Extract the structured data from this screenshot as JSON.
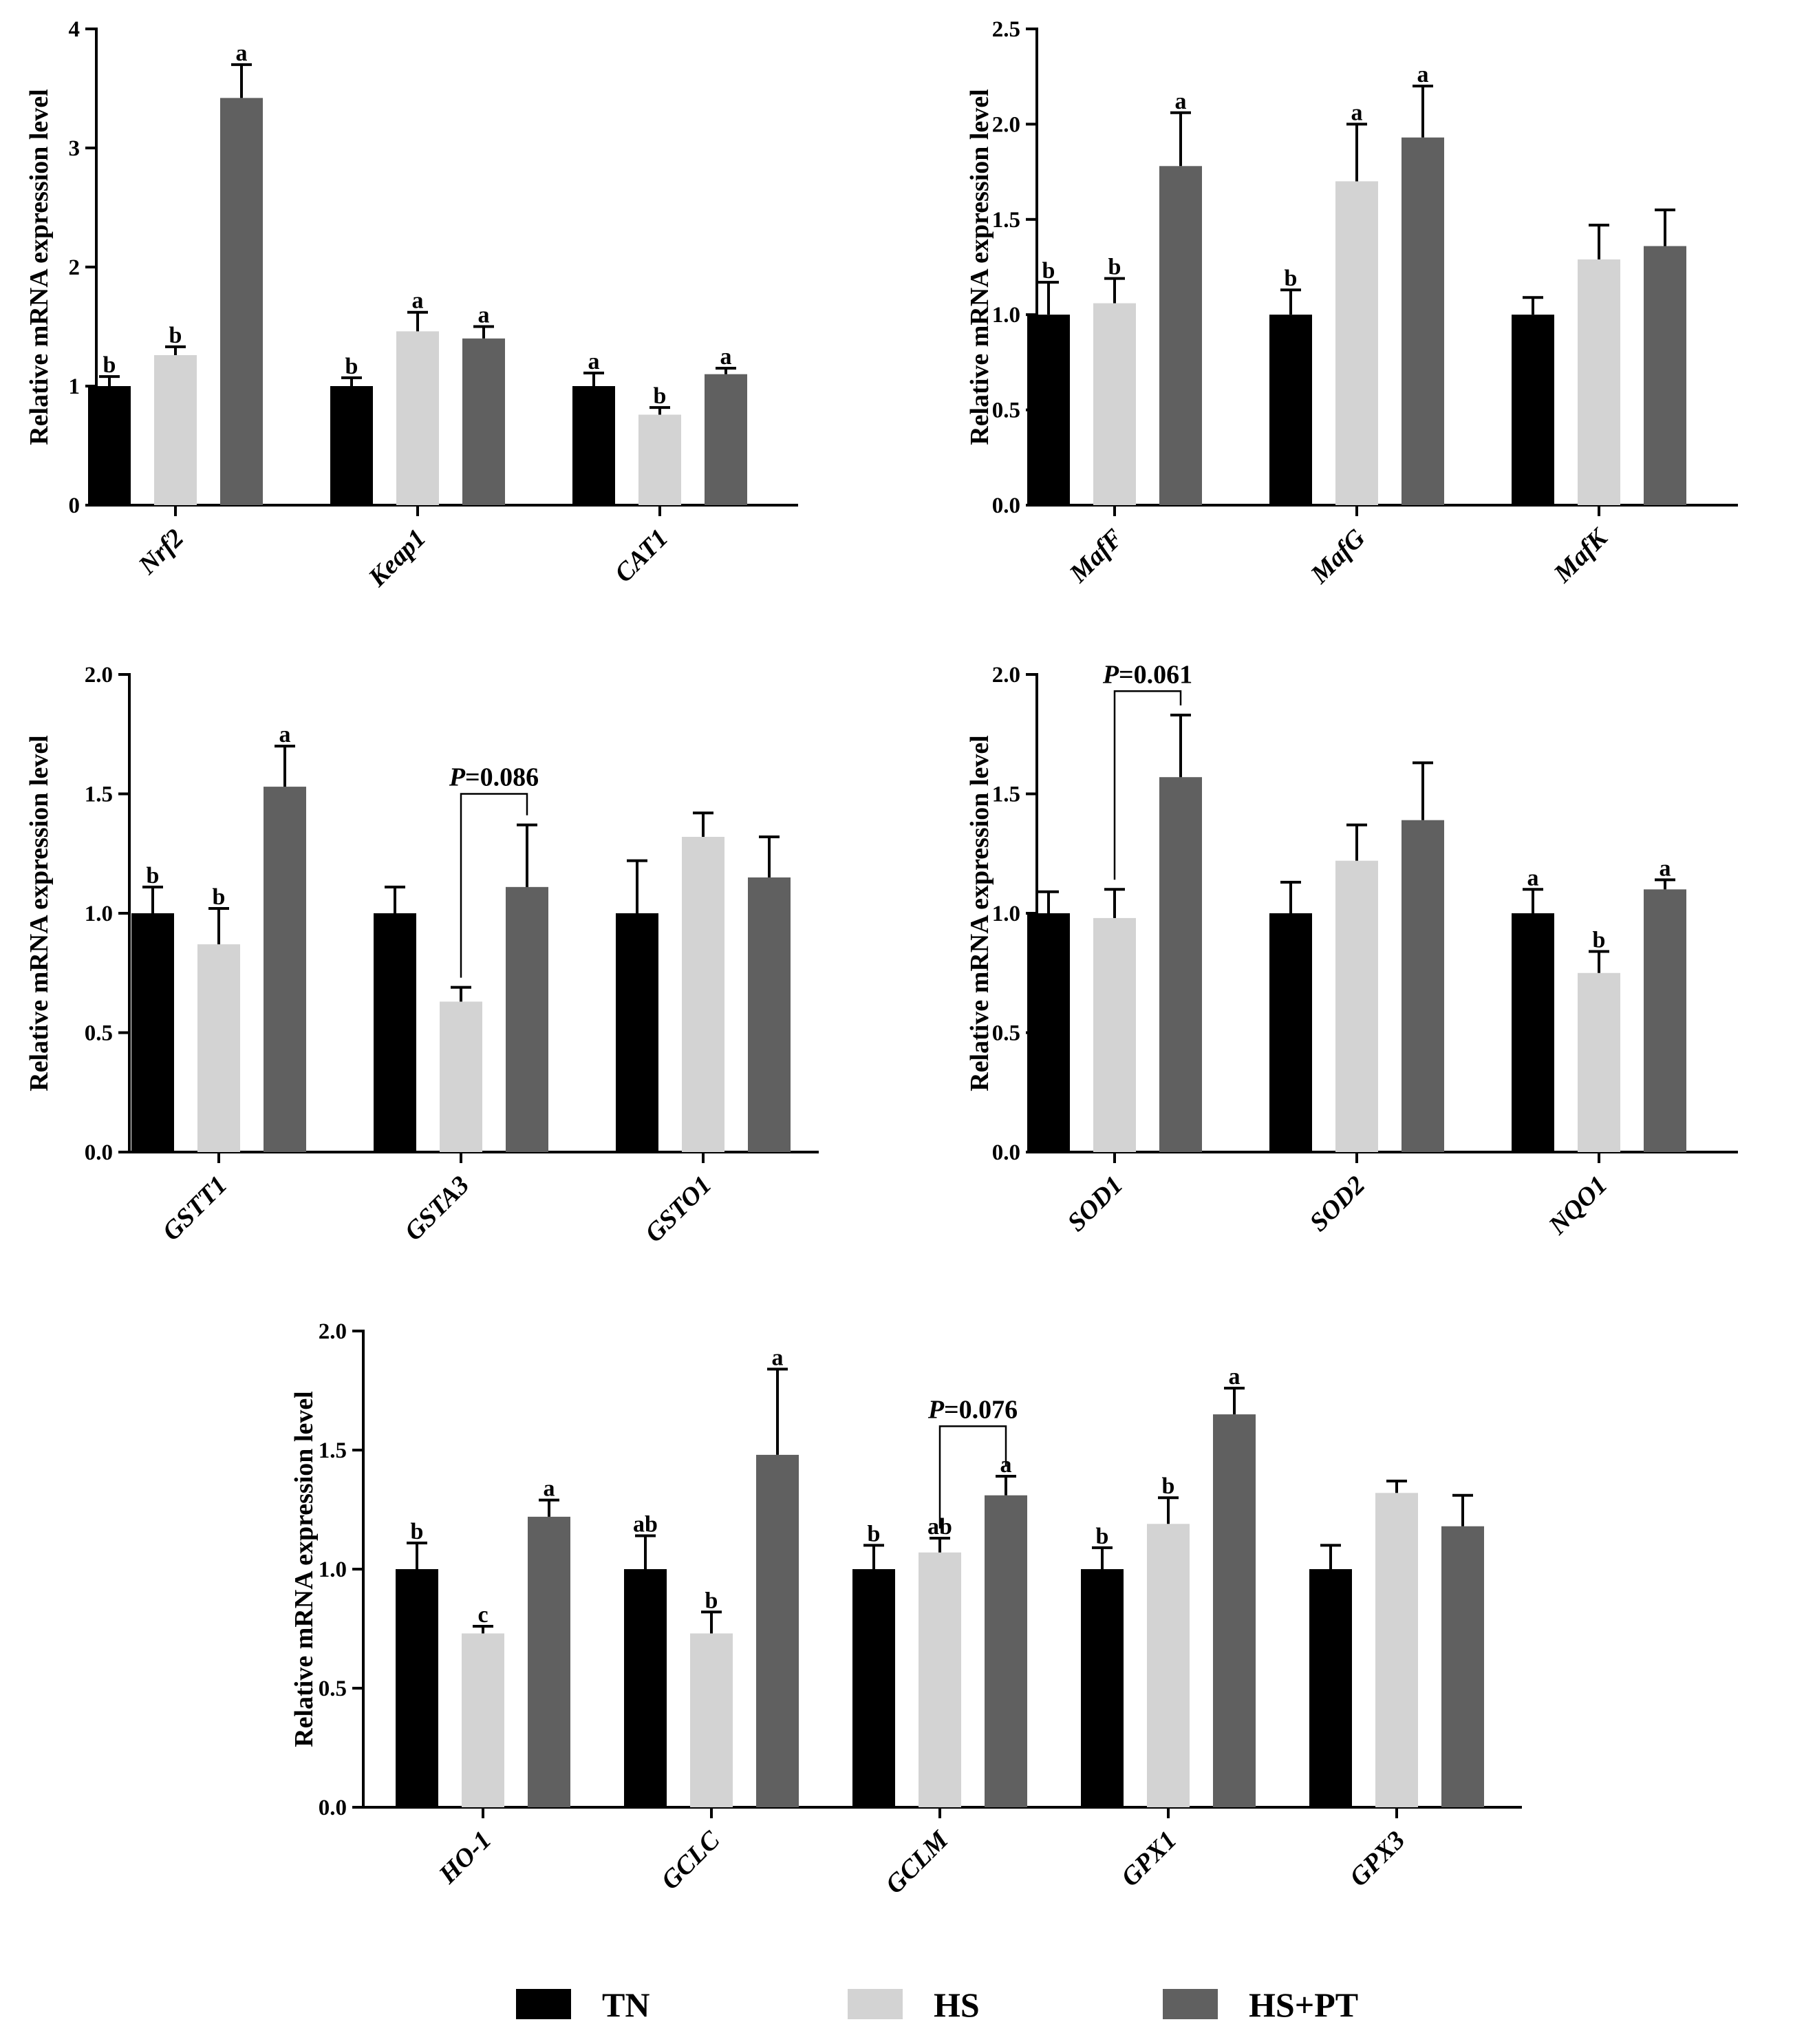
{
  "colors": {
    "TN": "#000000",
    "HS": "#d3d3d3",
    "HS+PT": "#606060"
  },
  "legend": [
    {
      "name": "TN",
      "color": "#000000"
    },
    {
      "name": "HS",
      "color": "#d3d3d3"
    },
    {
      "name": "HS+PT",
      "color": "#606060"
    }
  ],
  "chart_data": [
    {
      "type": "bar",
      "ylabel": "Relative mRNA expression level",
      "ylim": [
        0,
        4
      ],
      "yticks": [
        "0",
        "1",
        "2",
        "3",
        "4"
      ],
      "categories": [
        "Nrf2",
        "Keap1",
        "CAT1"
      ],
      "series": [
        {
          "name": "TN",
          "values": [
            1.0,
            1.0,
            1.0
          ],
          "errors": [
            0.08,
            0.07,
            0.11
          ],
          "letters": [
            "b",
            "b",
            "a"
          ]
        },
        {
          "name": "HS",
          "values": [
            1.26,
            1.46,
            0.76
          ],
          "errors": [
            0.07,
            0.16,
            0.06
          ],
          "letters": [
            "b",
            "a",
            "b"
          ]
        },
        {
          "name": "HS+PT",
          "values": [
            3.42,
            1.4,
            1.1
          ],
          "errors": [
            0.28,
            0.1,
            0.05
          ],
          "letters": [
            "a",
            "a",
            "a"
          ]
        }
      ],
      "annotations": []
    },
    {
      "type": "bar",
      "ylabel": "Relative mRNA expression level",
      "ylim": [
        0,
        2.5
      ],
      "yticks": [
        "0.0",
        "0.5",
        "1.0",
        "1.5",
        "2.0",
        "2.5"
      ],
      "categories": [
        "MafF",
        "MafG",
        "MafK"
      ],
      "series": [
        {
          "name": "TN",
          "values": [
            1.0,
            1.0,
            1.0
          ],
          "errors": [
            0.17,
            0.13,
            0.09
          ],
          "letters": [
            "b",
            "b",
            ""
          ]
        },
        {
          "name": "HS",
          "values": [
            1.06,
            1.7,
            1.29
          ],
          "errors": [
            0.13,
            0.3,
            0.18
          ],
          "letters": [
            "b",
            "a",
            ""
          ]
        },
        {
          "name": "HS+PT",
          "values": [
            1.78,
            1.93,
            1.36
          ],
          "errors": [
            0.28,
            0.27,
            0.19
          ],
          "letters": [
            "a",
            "a",
            ""
          ]
        }
      ],
      "annotations": []
    },
    {
      "type": "bar",
      "ylabel": "Relative mRNA expression level",
      "ylim": [
        0,
        2
      ],
      "yticks": [
        "0.0",
        "0.5",
        "1.0",
        "1.5",
        "2.0"
      ],
      "categories": [
        "GSTT1",
        "GSTA3",
        "GSTO1"
      ],
      "series": [
        {
          "name": "TN",
          "values": [
            1.0,
            1.0,
            1.0
          ],
          "errors": [
            0.11,
            0.11,
            0.22
          ],
          "letters": [
            "b",
            "",
            ""
          ]
        },
        {
          "name": "HS",
          "values": [
            0.87,
            0.63,
            1.32
          ],
          "errors": [
            0.15,
            0.06,
            0.1
          ],
          "letters": [
            "b",
            "",
            ""
          ]
        },
        {
          "name": "HS+PT",
          "values": [
            1.53,
            1.11,
            1.15
          ],
          "errors": [
            0.17,
            0.26,
            0.17
          ],
          "letters": [
            "a",
            "",
            ""
          ]
        }
      ],
      "annotations": [
        {
          "category": 1,
          "from": 1,
          "to": 2,
          "level": 1.5,
          "p_italic": "P",
          "text": "=0.086"
        }
      ]
    },
    {
      "type": "bar",
      "ylabel": "Relative mRNA expression level",
      "ylim": [
        0,
        2
      ],
      "yticks": [
        "0.0",
        "0.5",
        "1.0",
        "1.5",
        "2.0"
      ],
      "categories": [
        "SOD1",
        "SOD2",
        "NQO1"
      ],
      "series": [
        {
          "name": "TN",
          "values": [
            1.0,
            1.0,
            1.0
          ],
          "errors": [
            0.09,
            0.13,
            0.1
          ],
          "letters": [
            "",
            "",
            "a"
          ]
        },
        {
          "name": "HS",
          "values": [
            0.98,
            1.22,
            0.75
          ],
          "errors": [
            0.12,
            0.15,
            0.09
          ],
          "letters": [
            "",
            "",
            "b"
          ]
        },
        {
          "name": "HS+PT",
          "values": [
            1.57,
            1.39,
            1.1
          ],
          "errors": [
            0.26,
            0.24,
            0.04
          ],
          "letters": [
            "",
            "",
            "a"
          ]
        }
      ],
      "annotations": [
        {
          "category": 0,
          "from": 1,
          "to": 2,
          "level": 1.93,
          "p_italic": "P",
          "text": "=0.061"
        }
      ]
    },
    {
      "type": "bar",
      "ylabel": "Relative mRNA expression level",
      "ylim": [
        0,
        2
      ],
      "yticks": [
        "0.0",
        "0.5",
        "1.0",
        "1.5",
        "2.0"
      ],
      "categories": [
        "HO-1",
        "GCLC",
        "GCLM",
        "GPX1",
        "GPX3"
      ],
      "series": [
        {
          "name": "TN",
          "values": [
            1.0,
            1.0,
            1.0,
            1.0,
            1.0
          ],
          "errors": [
            0.11,
            0.14,
            0.1,
            0.09,
            0.1
          ],
          "letters": [
            "b",
            "ab",
            "b",
            "b",
            ""
          ]
        },
        {
          "name": "HS",
          "values": [
            0.73,
            0.73,
            1.07,
            1.19,
            1.32
          ],
          "errors": [
            0.03,
            0.09,
            0.06,
            0.11,
            0.05
          ],
          "letters": [
            "c",
            "b",
            "ab",
            "b",
            ""
          ]
        },
        {
          "name": "HS+PT",
          "values": [
            1.22,
            1.48,
            1.31,
            1.65,
            1.18
          ],
          "errors": [
            0.07,
            0.36,
            0.08,
            0.11,
            0.13
          ],
          "letters": [
            "a",
            "a",
            "a",
            "a",
            ""
          ]
        }
      ],
      "annotations": [
        {
          "category": 2,
          "from": 1,
          "to": 2,
          "level": 1.6,
          "p_italic": "P",
          "text": "=0.076"
        }
      ]
    }
  ]
}
